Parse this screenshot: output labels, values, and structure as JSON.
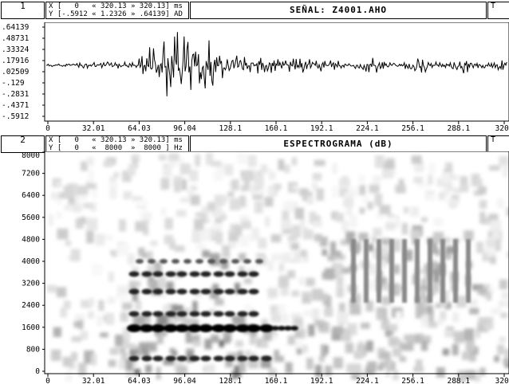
{
  "top_panel": {
    "number": "1",
    "x_line": "X [   0   « 320.13 » 320.13] ms",
    "y_line": "Y [-.5912 « 1.2326 » .64139] AD",
    "title": "SEÑAL: Z4001.AHO",
    "cut_label": "T",
    "y_ticks": [
      ".64139",
      ".48731",
      ".33324",
      ".17916",
      ".02509",
      "-.129",
      "-.2831",
      "-.4371",
      "-.5912"
    ],
    "x_ticks": [
      "0",
      "32.01",
      "64.03",
      "96.04",
      "128.1",
      "160.1",
      "192.1",
      "224.1",
      "256.1",
      "288.1",
      "320."
    ]
  },
  "bottom_panel": {
    "number": "2",
    "x_line": "X [   0   « 320.13 » 320.13] ms",
    "y_line": "Y [   0   «  8000  »  8000 ] Hz",
    "title": "ESPECTROGRAMA (dB)",
    "cut_label": "T",
    "y_ticks": [
      "8000",
      "7200",
      "6400",
      "5600",
      "4800",
      "4000",
      "3200",
      "2400",
      "1600",
      "800",
      "0"
    ],
    "x_ticks": [
      "0",
      "32.01",
      "64.03",
      "96.04",
      "128.1",
      "160.1",
      "192.1",
      "224.1",
      "256.1",
      "288.1",
      "320."
    ]
  }
}
